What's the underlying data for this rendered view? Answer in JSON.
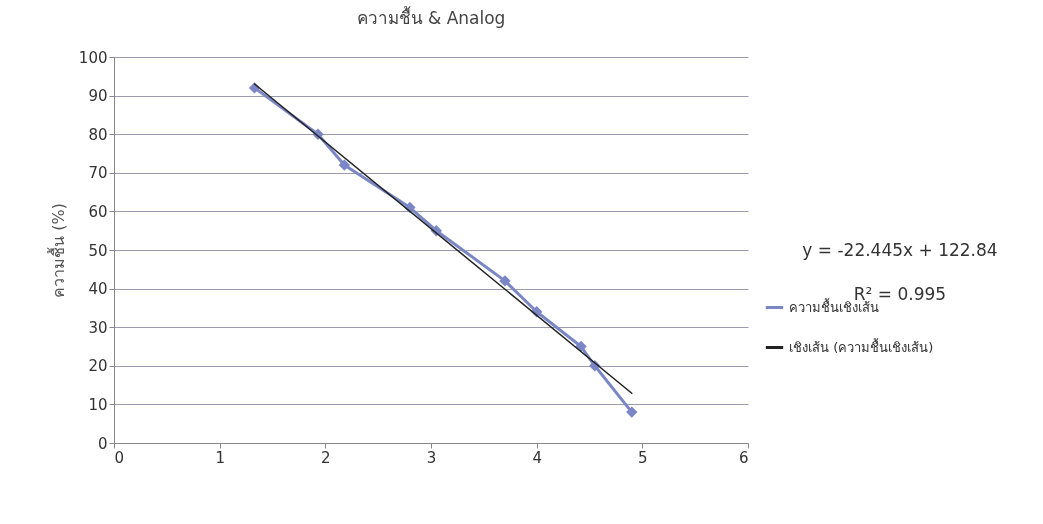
{
  "chart_data": {
    "type": "line",
    "title": "ความชื้น & Analog",
    "ylabel": "ความชื้น (%)",
    "xlim": [
      0,
      6
    ],
    "xticks": [
      0,
      1,
      2,
      3,
      4,
      5,
      6
    ],
    "ylim": [
      0,
      100
    ],
    "yticks": [
      0,
      10,
      20,
      30,
      40,
      50,
      60,
      70,
      80,
      90,
      100
    ],
    "grid": "y",
    "legend": "right",
    "line_style": "solid",
    "annotations": [
      "y = -22.445x + 122.84",
      "R² = 0.995"
    ],
    "series": [
      {
        "name": "ความชื้นเชิงเส้น",
        "color": "#7b86c6",
        "marker": "diamond",
        "x": [
          1.33,
          1.93,
          2.18,
          2.8,
          3.05,
          3.7,
          4.0,
          4.42,
          4.55,
          4.9
        ],
        "values": [
          92,
          80,
          72,
          61,
          55,
          42,
          34,
          25,
          20,
          8
        ]
      },
      {
        "name": "เชิงเส้น (ความชื้นเชิงเส้น)",
        "color": "#222222",
        "marker": "none",
        "x": [
          1.33,
          4.9
        ],
        "values": [
          93.0,
          12.9
        ]
      }
    ]
  }
}
